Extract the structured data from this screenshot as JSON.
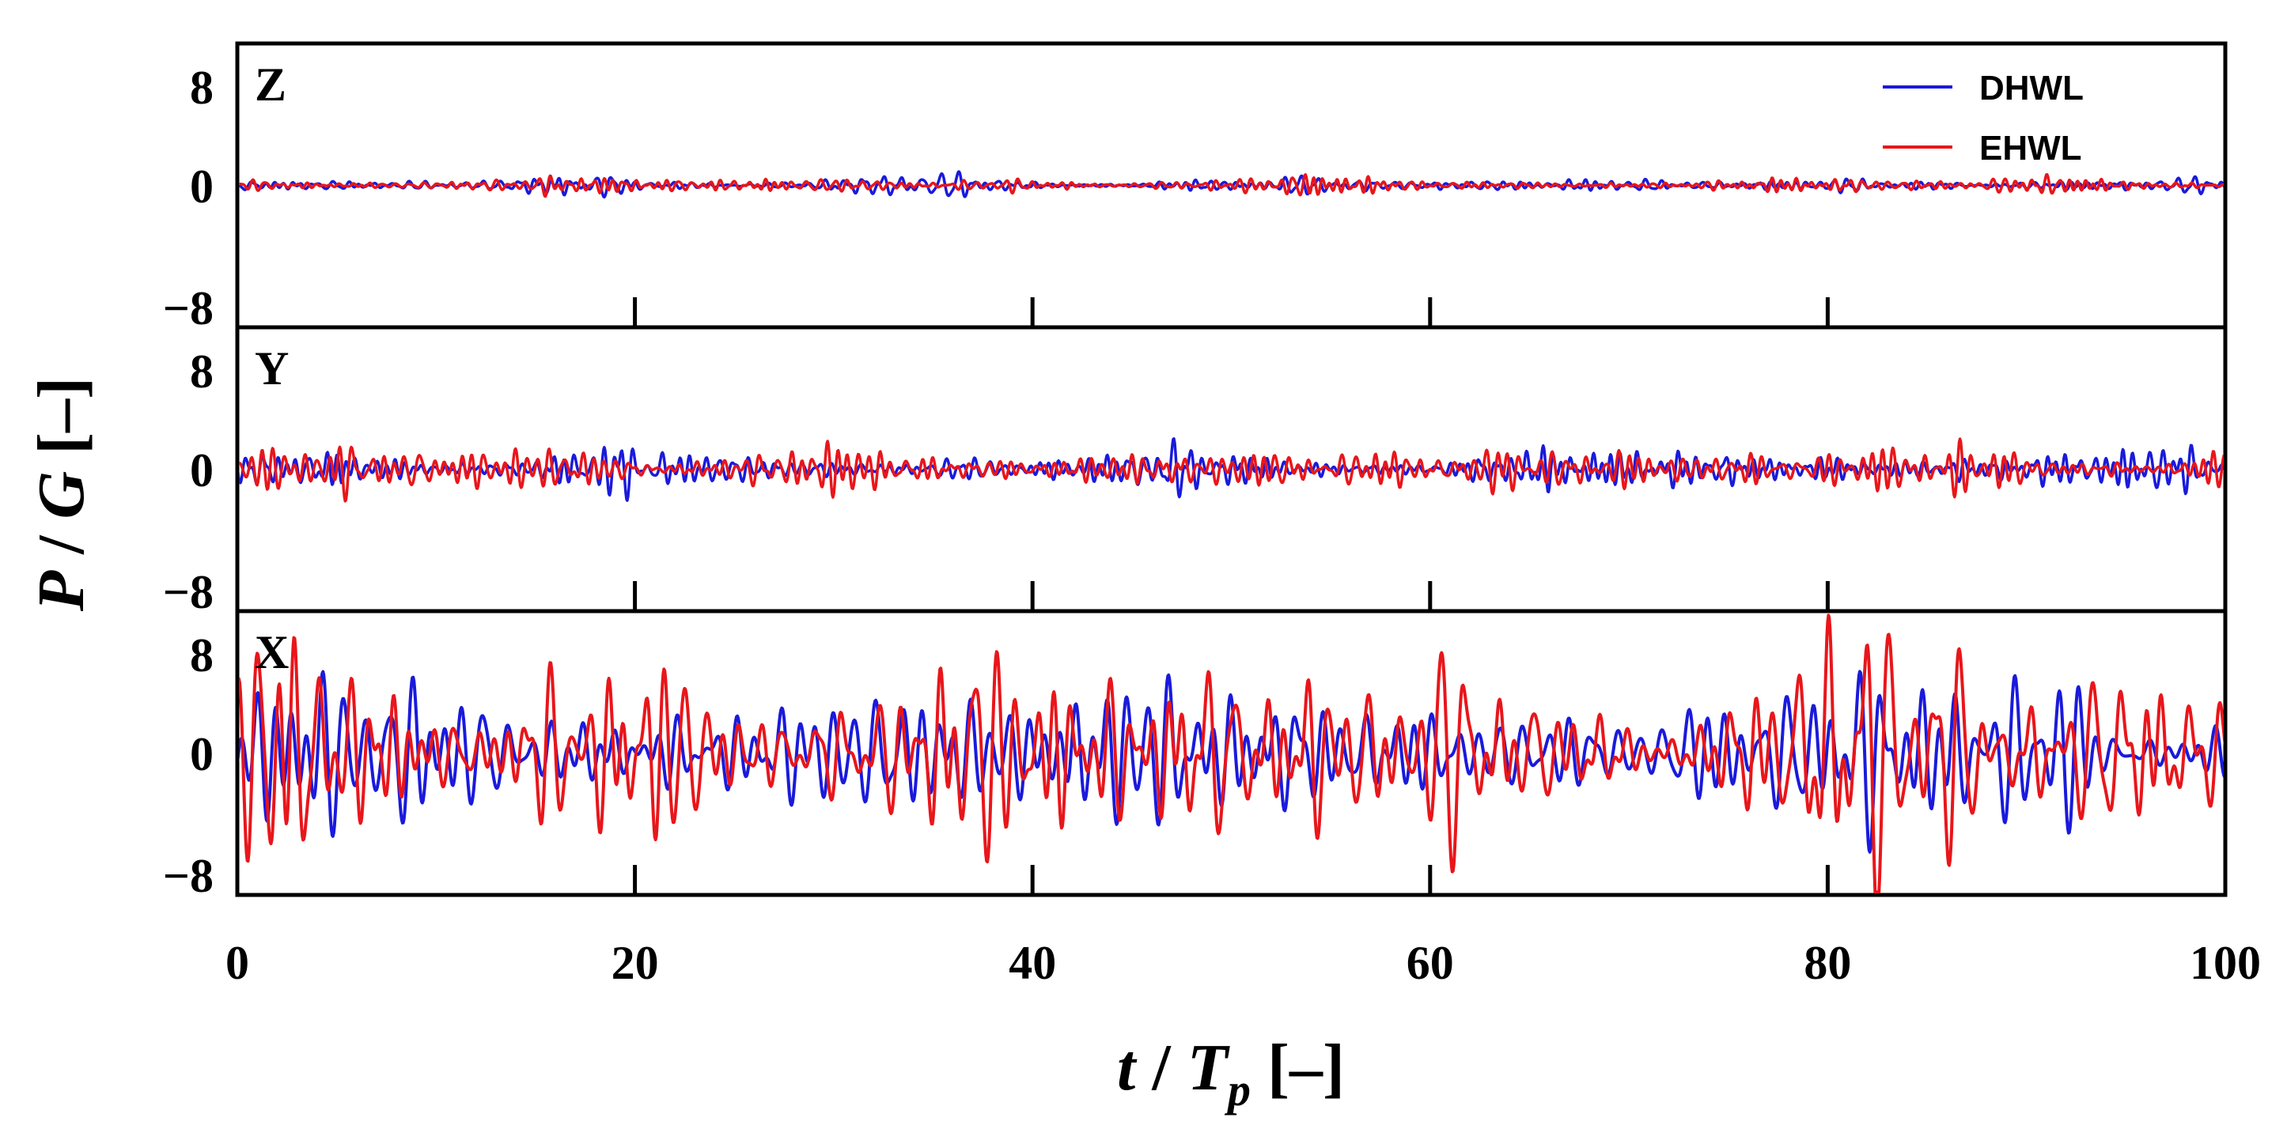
{
  "chart_data": {
    "type": "line",
    "xlabel": "t / Tp [–]",
    "xlabel_parts": {
      "t": "t",
      "slash": " / ",
      "T": "T",
      "sub": "p",
      "unit": " [–]"
    },
    "ylabel": "P / G [–]",
    "ylabel_parts": {
      "P": "P",
      "slash": " / ",
      "G": "G",
      "unit": " [–]"
    },
    "x_range": [
      0,
      100
    ],
    "x_ticks": [
      "0",
      "20",
      "40",
      "60",
      "80",
      "100"
    ],
    "y_range": [
      -10,
      10
    ],
    "y_ticks": [
      "8",
      "0",
      "−8"
    ],
    "legend": {
      "placement": "top-right",
      "entries": [
        {
          "name": "DHWL",
          "color": "#1a1adb"
        },
        {
          "name": "EHWL",
          "color": "#e8161b"
        }
      ]
    },
    "panels": [
      {
        "label": "Z",
        "series": [
          {
            "name": "DHWL",
            "color": "#1a1adb",
            "amplitude": 0.35,
            "seed": 11,
            "freq": 1.6
          },
          {
            "name": "EHWL",
            "color": "#e8161b",
            "amplitude": 0.35,
            "seed": 23,
            "freq": 1.6
          }
        ]
      },
      {
        "label": "Y",
        "series": [
          {
            "name": "DHWL",
            "color": "#1a1adb",
            "amplitude": 0.9,
            "seed": 37,
            "freq": 1.4
          },
          {
            "name": "EHWL",
            "color": "#e8161b",
            "amplitude": 1.0,
            "seed": 41,
            "freq": 1.4
          }
        ]
      },
      {
        "label": "X",
        "series": [
          {
            "name": "DHWL",
            "color": "#1a1adb",
            "amplitude": 3.6,
            "seed": 53,
            "freq": 1.0
          },
          {
            "name": "EHWL",
            "color": "#e8161b",
            "amplitude": 4.6,
            "seed": 67,
            "freq": 1.0
          }
        ]
      }
    ]
  }
}
